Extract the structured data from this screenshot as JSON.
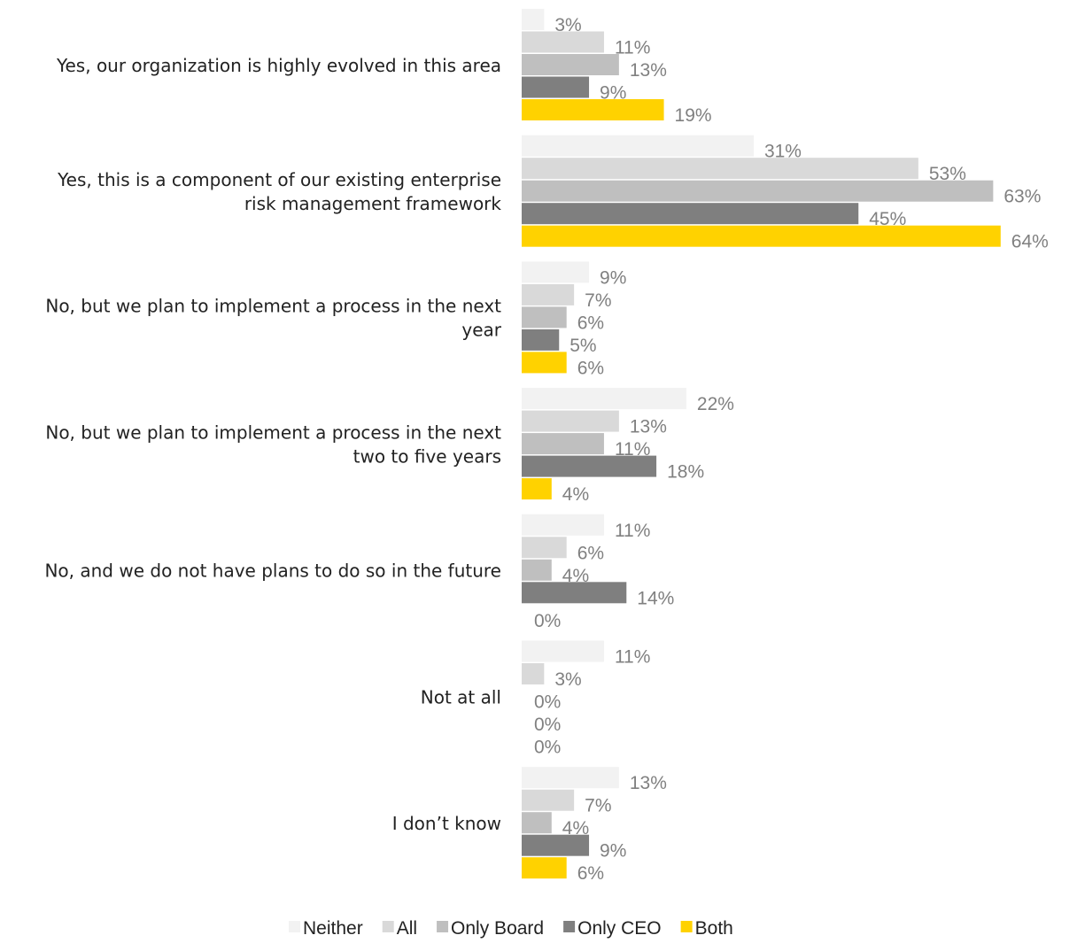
{
  "chart_data": {
    "type": "bar",
    "orientation": "horizontal",
    "categories": [
      [
        "Yes, our organization is highly evolved in this area"
      ],
      [
        "Yes, this is a component of our existing enterprise",
        "risk management  framework"
      ],
      [
        "No, but we plan to implement a process in the next",
        "year"
      ],
      [
        "No, but we plan to implement a process in the next",
        "two to five years"
      ],
      [
        "No, and we do not have plans to do so in the future"
      ],
      [
        "Not at all"
      ],
      [
        "I don’t know"
      ]
    ],
    "series": [
      {
        "name": "Neither",
        "color": "#f2f2f2",
        "values": [
          3,
          31,
          9,
          22,
          11,
          11,
          13
        ]
      },
      {
        "name": "All",
        "color": "#d9d9d9",
        "values": [
          11,
          53,
          7,
          13,
          6,
          3,
          7
        ]
      },
      {
        "name": "Only Board",
        "color": "#bfbfbf",
        "values": [
          13,
          63,
          6,
          11,
          4,
          0,
          4
        ]
      },
      {
        "name": "Only CEO",
        "color": "#7f7f7f",
        "values": [
          9,
          45,
          5,
          18,
          14,
          0,
          9
        ]
      },
      {
        "name": "Both",
        "color": "#ffd200",
        "values": [
          19,
          64,
          6,
          4,
          0,
          0,
          6
        ]
      }
    ],
    "value_suffix": "%",
    "xlim": [
      0,
      64
    ],
    "grid": false,
    "legend_position": "bottom"
  }
}
